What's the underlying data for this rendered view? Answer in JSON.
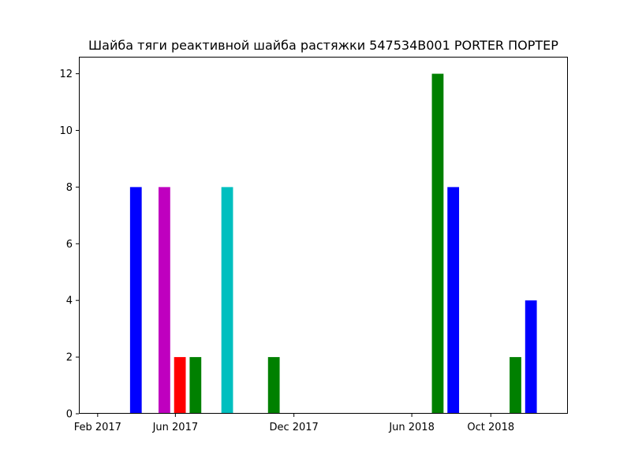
{
  "chart_data": {
    "type": "bar",
    "title": "Шайба тяги реактивной шайба растяжки 547534B001 PORTER ПОРТЕР",
    "xlabel": "",
    "ylabel": "",
    "x_axis_type": "date",
    "xlim": [
      "2017-01-03",
      "2019-01-28"
    ],
    "ylim": [
      0,
      12.6
    ],
    "y_ticks": [
      0,
      2,
      4,
      6,
      8,
      10,
      12
    ],
    "x_ticks": [
      {
        "date": "2017-02-01",
        "label": "Feb 2017"
      },
      {
        "date": "2017-06-01",
        "label": "Jun 2017"
      },
      {
        "date": "2017-12-01",
        "label": "Dec 2017"
      },
      {
        "date": "2018-06-01",
        "label": "Jun 2018"
      },
      {
        "date": "2018-10-01",
        "label": "Oct 2018"
      }
    ],
    "grid": false,
    "bars": [
      {
        "date": "2017-04-01",
        "value": 8,
        "color": "#0000ff"
      },
      {
        "date": "2017-05-15",
        "value": 8,
        "color": "#bf00bf"
      },
      {
        "date": "2017-06-08",
        "value": 2,
        "color": "#ff0000"
      },
      {
        "date": "2017-07-02",
        "value": 2,
        "color": "#008000"
      },
      {
        "date": "2017-08-20",
        "value": 8,
        "color": "#00bfbf"
      },
      {
        "date": "2017-10-31",
        "value": 2,
        "color": "#008000"
      },
      {
        "date": "2018-07-11",
        "value": 12,
        "color": "#008000"
      },
      {
        "date": "2018-08-04",
        "value": 8,
        "color": "#0000ff"
      },
      {
        "date": "2018-11-08",
        "value": 2,
        "color": "#008000"
      },
      {
        "date": "2018-12-02",
        "value": 4,
        "color": "#0000ff"
      }
    ]
  }
}
